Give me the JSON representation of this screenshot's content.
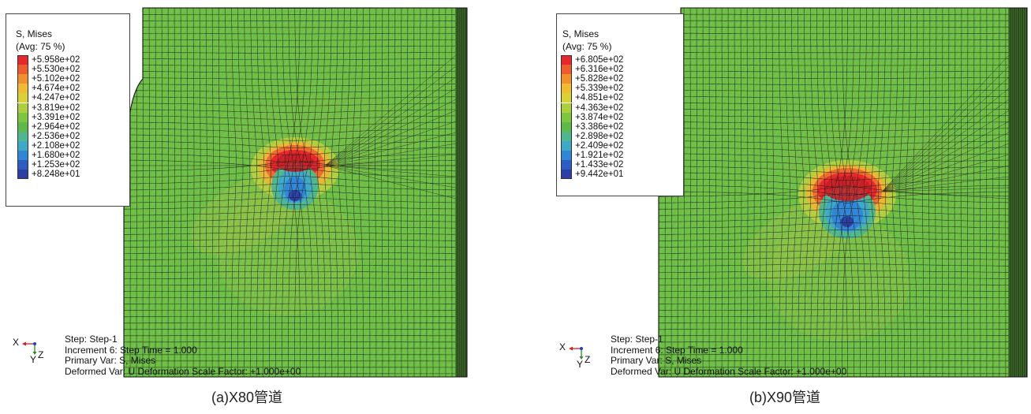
{
  "panels": [
    {
      "legend": {
        "title": "S, Mises",
        "subtitle": "(Avg: 75 %)",
        "values": [
          "+5.958e+02",
          "+5.530e+02",
          "+5.102e+02",
          "+4.674e+02",
          "+4.247e+02",
          "+3.819e+02",
          "+3.391e+02",
          "+2.964e+02",
          "+2.536e+02",
          "+2.108e+02",
          "+1.680e+02",
          "+1.253e+02",
          "+8.248e+01"
        ]
      },
      "info": {
        "step": "Step: Step-1",
        "increment": "Increment 6: Step Time = 1.000",
        "primary": "Primary Var: S, Mises",
        "deformed": "Deformed Var: U Deformation Scale Factor: +1.000e+00"
      },
      "triad": {
        "x": "X",
        "y": "Y",
        "z": "Z"
      },
      "caption": "(a)X80管道"
    },
    {
      "legend": {
        "title": "S, Mises",
        "subtitle": "(Avg: 75 %)",
        "values": [
          "+6.805e+02",
          "+6.316e+02",
          "+5.828e+02",
          "+5.339e+02",
          "+4.851e+02",
          "+4.363e+02",
          "+3.874e+02",
          "+3.386e+02",
          "+2.898e+02",
          "+2.409e+02",
          "+1.921e+02",
          "+1.433e+02",
          "+9.442e+01"
        ]
      },
      "info": {
        "step": "Step: Step-1",
        "increment": "Increment 6: Step Time = 1.000",
        "primary": "Primary Var: S, Mises",
        "deformed": "Deformed Var: U Deformation Scale Factor: +1.000e+00"
      },
      "triad": {
        "x": "X",
        "y": "Y",
        "z": "Z"
      },
      "caption": "(b)X90管道"
    }
  ],
  "colors": {
    "contour": [
      "#e8272a",
      "#ee5c2b",
      "#f3902e",
      "#f1bc31",
      "#d8d236",
      "#abd03b",
      "#7ec63d",
      "#5cba49",
      "#4fb78e",
      "#3ea8c8",
      "#2f85d6",
      "#2a5cc4",
      "#2b3fa7"
    ],
    "mesh_line": "#1a1a1a",
    "base_green": "#6dbf45"
  }
}
